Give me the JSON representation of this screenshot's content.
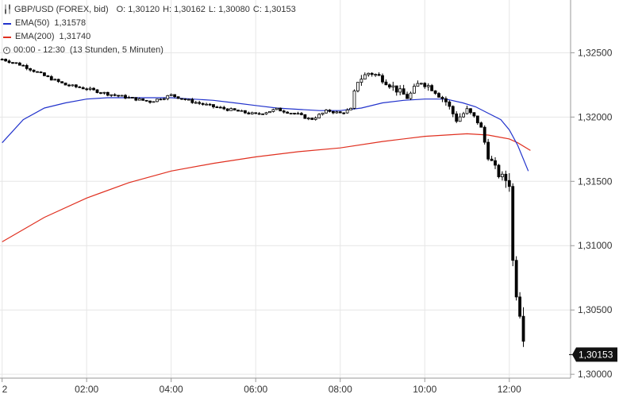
{
  "chart_data": {
    "type": "candlestick",
    "instrument": "GBP/USD (FOREX, bid)",
    "ohlc_labels": {
      "o": "O: 1,30120",
      "h": "H: 1,30162",
      "l": "L: 1,30080",
      "c": "C: 1,30153"
    },
    "ema50": {
      "name": "EMA(50)",
      "value": "1,31578",
      "color": "#2233cc"
    },
    "ema200": {
      "name": "EMA(200)",
      "value": "1,31740",
      "color": "#e03020"
    },
    "period": "00:00 - 12:30",
    "interval": "(13 Stunden, 5 Minuten)",
    "current_price_label": "1,30153",
    "ylim": [
      1.2997,
      1.3291
    ],
    "y_ticks": [
      {
        "value": 1.325,
        "label": "1,32500"
      },
      {
        "value": 1.32,
        "label": "1,32000"
      },
      {
        "value": 1.315,
        "label": "1,31500"
      },
      {
        "value": 1.31,
        "label": "1,31000"
      },
      {
        "value": 1.305,
        "label": "1,30500"
      },
      {
        "value": 1.3,
        "label": "1,30000"
      }
    ],
    "x_range_hours": [
      -0.05,
      13.45
    ],
    "x_ticks": [
      {
        "hour": 0,
        "label": "2"
      },
      {
        "hour": 2,
        "label": "02:00"
      },
      {
        "hour": 4,
        "label": "04:00"
      },
      {
        "hour": 6,
        "label": "06:00"
      },
      {
        "hour": 8,
        "label": "08:00"
      },
      {
        "hour": 10,
        "label": "10:00"
      },
      {
        "hour": 12,
        "label": "12:00"
      }
    ],
    "candle_close_path": [
      [
        0.0,
        1.3245
      ],
      [
        0.5,
        1.324
      ],
      [
        1.0,
        1.3232
      ],
      [
        1.5,
        1.3225
      ],
      [
        2.0,
        1.3222
      ],
      [
        2.5,
        1.3218
      ],
      [
        3.0,
        1.3215
      ],
      [
        3.5,
        1.3212
      ],
      [
        4.0,
        1.3217
      ],
      [
        4.5,
        1.3212
      ],
      [
        5.0,
        1.3208
      ],
      [
        5.5,
        1.3205
      ],
      [
        6.0,
        1.3202
      ],
      [
        6.5,
        1.3206
      ],
      [
        7.0,
        1.3202
      ],
      [
        7.3,
        1.3198
      ],
      [
        7.7,
        1.3205
      ],
      [
        8.0,
        1.3203
      ],
      [
        8.25,
        1.3206
      ],
      [
        8.4,
        1.3228
      ],
      [
        8.7,
        1.3235
      ],
      [
        9.0,
        1.323
      ],
      [
        9.3,
        1.3222
      ],
      [
        9.6,
        1.3215
      ],
      [
        9.9,
        1.3228
      ],
      [
        10.2,
        1.3222
      ],
      [
        10.5,
        1.3212
      ],
      [
        10.75,
        1.3198
      ],
      [
        11.0,
        1.3205
      ],
      [
        11.3,
        1.3195
      ],
      [
        11.5,
        1.317
      ],
      [
        11.75,
        1.3155
      ],
      [
        12.0,
        1.315
      ],
      [
        12.1,
        1.3075
      ],
      [
        12.2,
        1.306
      ],
      [
        12.3,
        1.304
      ],
      [
        12.4,
        1.3015
      ]
    ],
    "ema50_path": [
      [
        0.0,
        1.318
      ],
      [
        0.5,
        1.3198
      ],
      [
        1.0,
        1.3207
      ],
      [
        1.5,
        1.3211
      ],
      [
        2.0,
        1.3214
      ],
      [
        2.5,
        1.3215
      ],
      [
        3.0,
        1.3215
      ],
      [
        3.5,
        1.3215
      ],
      [
        4.0,
        1.3215
      ],
      [
        4.5,
        1.3214
      ],
      [
        5.0,
        1.3213
      ],
      [
        5.5,
        1.3211
      ],
      [
        6.0,
        1.3209
      ],
      [
        6.5,
        1.3207
      ],
      [
        7.0,
        1.3206
      ],
      [
        7.5,
        1.3205
      ],
      [
        8.0,
        1.3205
      ],
      [
        8.5,
        1.3207
      ],
      [
        9.0,
        1.3211
      ],
      [
        9.5,
        1.3213
      ],
      [
        10.0,
        1.3214
      ],
      [
        10.5,
        1.3214
      ],
      [
        10.9,
        1.3211
      ],
      [
        11.2,
        1.3208
      ],
      [
        11.5,
        1.3203
      ],
      [
        11.8,
        1.3198
      ],
      [
        12.0,
        1.319
      ],
      [
        12.2,
        1.3178
      ],
      [
        12.45,
        1.3158
      ]
    ],
    "ema200_path": [
      [
        0.0,
        1.3103
      ],
      [
        1.0,
        1.3122
      ],
      [
        2.0,
        1.3137
      ],
      [
        3.0,
        1.3149
      ],
      [
        4.0,
        1.3158
      ],
      [
        5.0,
        1.3164
      ],
      [
        6.0,
        1.3169
      ],
      [
        7.0,
        1.3173
      ],
      [
        8.0,
        1.3176
      ],
      [
        9.0,
        1.3181
      ],
      [
        10.0,
        1.3185
      ],
      [
        10.5,
        1.3186
      ],
      [
        11.0,
        1.3187
      ],
      [
        11.5,
        1.3186
      ],
      [
        12.0,
        1.3183
      ],
      [
        12.2,
        1.318
      ],
      [
        12.5,
        1.3174
      ]
    ]
  }
}
